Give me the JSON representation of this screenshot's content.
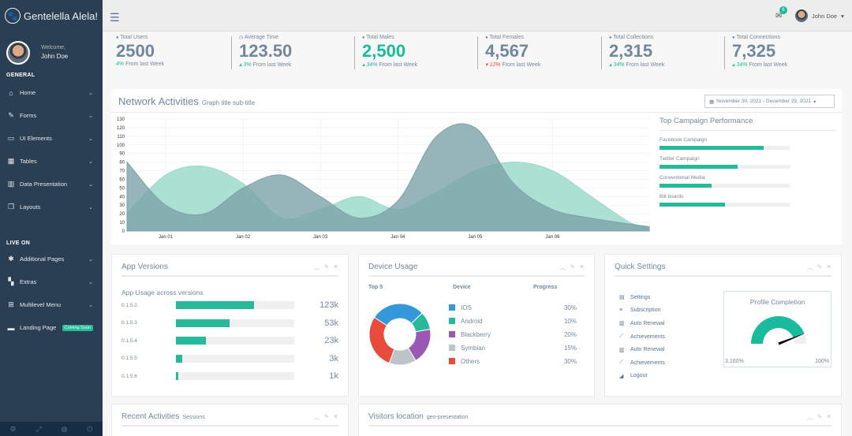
{
  "brand": {
    "name": "Gentelella Alela!",
    "logo_icon": "paw-icon"
  },
  "profile": {
    "welcome": "Welcome,",
    "name": "John Doe"
  },
  "sidebar": {
    "sections": [
      {
        "title": "GENERAL",
        "items": [
          {
            "label": "Home",
            "icon": "home-icon"
          },
          {
            "label": "Forms",
            "icon": "edit-icon"
          },
          {
            "label": "UI Elements",
            "icon": "desktop-icon"
          },
          {
            "label": "Tables",
            "icon": "table-icon"
          },
          {
            "label": "Data Presentation",
            "icon": "bar-chart-icon"
          },
          {
            "label": "Layouts",
            "icon": "clone-icon"
          }
        ]
      },
      {
        "title": "LIVE ON",
        "items": [
          {
            "label": "Additional Pages",
            "icon": "bug-icon"
          },
          {
            "label": "Extras",
            "icon": "windows-icon"
          },
          {
            "label": "Multilevel Menu",
            "icon": "sitemap-icon"
          },
          {
            "label": "Landing Page",
            "icon": "laptop-icon",
            "badge": "Coming Soon"
          }
        ]
      }
    ],
    "footer_icons": [
      "settings-icon",
      "fullscreen-icon",
      "lock-icon",
      "logout-icon"
    ]
  },
  "topnav": {
    "mail_count": "6",
    "user_name": "John Doe"
  },
  "stats": [
    {
      "label": "Total Users",
      "icon": "user-icon",
      "value": "2500",
      "change": "4%",
      "change_dir": "up",
      "suffix": "From last Week",
      "highlight": false
    },
    {
      "label": "Average Time",
      "icon": "clock-icon",
      "value": "123.50",
      "change": "3%",
      "change_dir": "up",
      "suffix": "From last Week",
      "highlight": false
    },
    {
      "label": "Total Males",
      "icon": "user-icon",
      "value": "2,500",
      "change": "34%",
      "change_dir": "up",
      "suffix": "From last Week",
      "highlight": true
    },
    {
      "label": "Total Females",
      "icon": "user-icon",
      "value": "4,567",
      "change": "12%",
      "change_dir": "down",
      "suffix": "From last Week",
      "highlight": false
    },
    {
      "label": "Total Collections",
      "icon": "user-icon",
      "value": "2,315",
      "change": "34%",
      "change_dir": "up",
      "suffix": "From last Week",
      "highlight": false
    },
    {
      "label": "Total Connections",
      "icon": "user-icon",
      "value": "7,325",
      "change": "34%",
      "change_dir": "up",
      "suffix": "From last Week",
      "highlight": false
    }
  ],
  "network": {
    "title": "Network Activities",
    "subtitle": "Graph title sub-title",
    "daterange": "November 30, 2021 - December 29, 2021"
  },
  "chart_data": {
    "type": "area",
    "x": [
      0,
      0.5,
      1,
      1.5,
      2,
      2.5,
      3,
      3.5,
      4,
      4.5,
      5,
      5.5,
      6,
      6.5,
      6.75
    ],
    "xtick_labels": [
      "Jan 01",
      "Jan 02",
      "Jan 03",
      "Jan 04",
      "Jan 05",
      "Jan 06"
    ],
    "ylim": [
      0,
      130
    ],
    "yticks": [
      0,
      10,
      20,
      30,
      40,
      50,
      60,
      70,
      80,
      90,
      100,
      110,
      120,
      130
    ],
    "grid": true,
    "series": [
      {
        "color": "#96D9C8",
        "values": [
          20,
          65,
          75,
          55,
          15,
          25,
          40,
          25,
          45,
          70,
          80,
          70,
          40,
          10,
          5
        ]
      },
      {
        "color": "#7CA2A8",
        "values": [
          80,
          30,
          20,
          50,
          65,
          40,
          15,
          35,
          110,
          120,
          55,
          25,
          15,
          8,
          5
        ]
      }
    ]
  },
  "campaign": {
    "title": "Top Campaign Performance",
    "items": [
      {
        "label": "Facebook Campaign",
        "value": 0.8
      },
      {
        "label": "Twitter Campaign",
        "value": 0.6
      },
      {
        "label": "Conventional Media",
        "value": 0.4
      },
      {
        "label": "Bill boards",
        "value": 0.5
      }
    ]
  },
  "app_versions": {
    "title": "App Versions",
    "subtitle": "App Usage across versions",
    "rows": [
      {
        "version": "0.1.5.2",
        "fraction": 0.66,
        "value": "123k"
      },
      {
        "version": "0.1.5.3",
        "fraction": 0.45,
        "value": "53k"
      },
      {
        "version": "0.1.5.4",
        "fraction": 0.25,
        "value": "23k"
      },
      {
        "version": "0.1.5.5",
        "fraction": 0.05,
        "value": "3k"
      },
      {
        "version": "0.1.5.6",
        "fraction": 0.02,
        "value": "1k"
      }
    ]
  },
  "device_usage": {
    "title": "Device Usage",
    "col_top": "Top 5",
    "col_device": "Device",
    "col_progress": "Progress",
    "rows": [
      {
        "name": "IOS",
        "progress": "30%",
        "share": 30,
        "color": "#3498DB"
      },
      {
        "name": "Android",
        "progress": "10%",
        "share": 10,
        "color": "#26B99A"
      },
      {
        "name": "Blackberry",
        "progress": "20%",
        "share": 20,
        "color": "#9B59B6"
      },
      {
        "name": "Symbian",
        "progress": "15%",
        "share": 15,
        "color": "#BDC3C7"
      },
      {
        "name": "Others",
        "progress": "30%",
        "share": 30,
        "color": "#E74C3C"
      }
    ]
  },
  "quick_settings": {
    "title": "Quick Settings",
    "items": [
      {
        "label": "Settings",
        "icon": "calendar-icon"
      },
      {
        "label": "Subscription",
        "icon": "list-icon"
      },
      {
        "label": "Auto Renewal",
        "icon": "bar-chart-icon"
      },
      {
        "label": "Achievements",
        "icon": "line-chart-icon"
      },
      {
        "label": "Auto Renewal",
        "icon": "bar-chart-icon"
      },
      {
        "label": "Achievements",
        "icon": "line-chart-icon"
      },
      {
        "label": "Logout",
        "icon": "area-chart-icon"
      }
    ],
    "profile_completion": {
      "title": "Profile Completion",
      "min": "3,160%",
      "max": "100%",
      "level": 0.88
    }
  },
  "recent_activities": {
    "title": "Recent Activities",
    "small": "Sessions"
  },
  "visitors": {
    "title": "Visitors location",
    "small": "geo-presentation"
  },
  "colors": {
    "accent": "#1ABB9C",
    "sidebar": "#2A3F54",
    "red": "#E74C3C"
  }
}
